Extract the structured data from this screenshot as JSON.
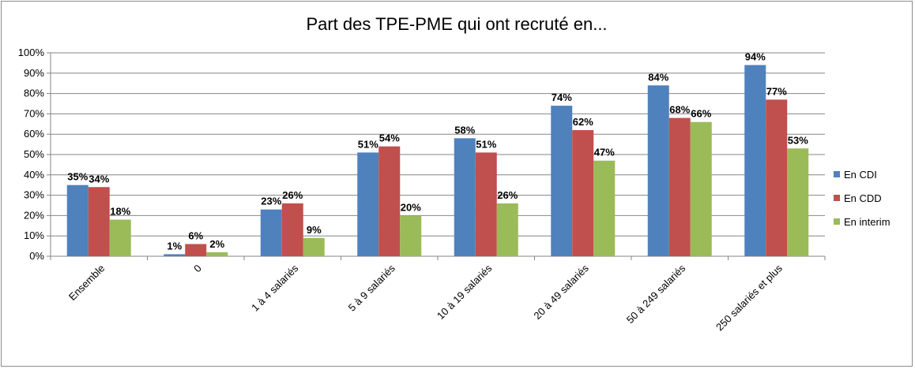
{
  "chart_data": {
    "type": "bar",
    "title": "Part des TPE-PME qui ont recruté en...",
    "xlabel": "",
    "ylabel": "",
    "ylim": [
      0,
      100
    ],
    "y_ticks": [
      "0%",
      "10%",
      "20%",
      "30%",
      "40%",
      "50%",
      "60%",
      "70%",
      "80%",
      "90%",
      "100%"
    ],
    "categories": [
      "Ensemble",
      "0",
      "1 à 4 salariés",
      "5 à 9 salariés",
      "10 à 19 salariés",
      "20 à 49 salariés",
      "50 à 249 salariés",
      "250 salariés et plus"
    ],
    "series": [
      {
        "name": "En CDI",
        "color": "#4F81BD",
        "values": [
          35,
          1,
          23,
          51,
          58,
          74,
          84,
          94
        ],
        "labels": [
          "35%",
          "1%",
          "23%",
          "51%",
          "58%",
          "74%",
          "84%",
          "94%"
        ]
      },
      {
        "name": "En CDD",
        "color": "#C0504D",
        "values": [
          34,
          6,
          26,
          54,
          51,
          62,
          68,
          77
        ],
        "labels": [
          "34%",
          "6%",
          "26%",
          "54%",
          "51%",
          "62%",
          "68%",
          "77%"
        ]
      },
      {
        "name": "En interim",
        "color": "#9BBB59",
        "values": [
          18,
          2,
          9,
          20,
          26,
          47,
          66,
          53
        ],
        "labels": [
          "18%",
          "2%",
          "9%",
          "20%",
          "26%",
          "47%",
          "66%",
          "53%"
        ]
      }
    ],
    "grid": true,
    "legend_position": "right"
  }
}
